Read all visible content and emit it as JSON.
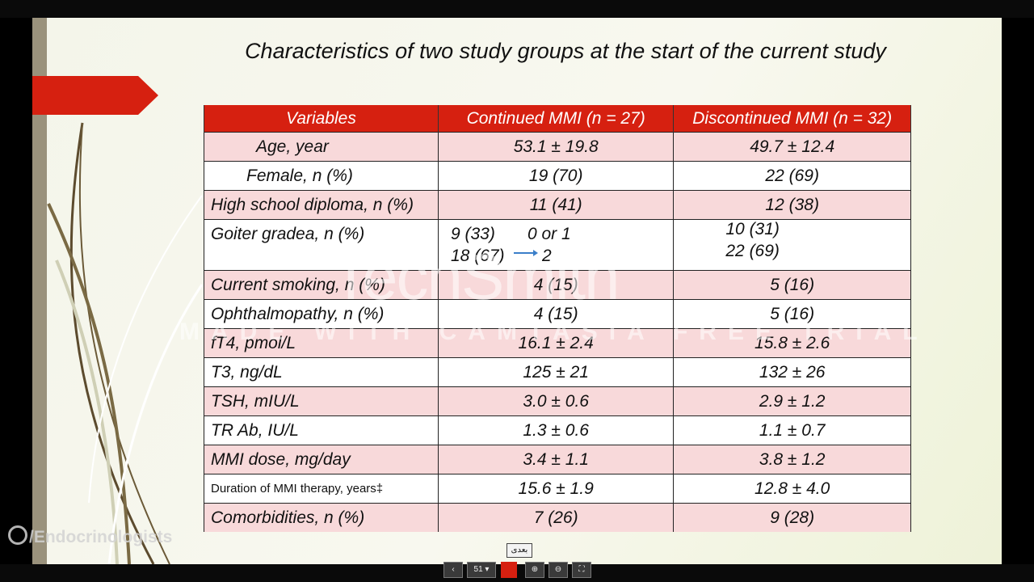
{
  "slide": {
    "title": "Characteristics of two study groups at the start of the current study",
    "accent_color": "#d62010",
    "row_pink": "#f8d9da"
  },
  "table": {
    "headers": [
      "Variables",
      "Continued MMI (n = 27)",
      "Discontinued MMI (n = 32)"
    ],
    "rows": [
      {
        "label": "Age, year",
        "continued": "53.1 ± 19.8",
        "discontinued": "49.7 ± 12.4"
      },
      {
        "label": "Female, n (%)",
        "continued": "19 (70)",
        "discontinued": "22 (69)"
      },
      {
        "label": "High school diploma, n (%)",
        "continued": "11 (41)",
        "discontinued": "12 (38)"
      },
      {
        "label": "Goiter gradea, n (%)",
        "continued_a": "9 (33)",
        "grade_a": "0 or 1",
        "continued_b": "18 (67)",
        "grade_b": "2",
        "discontinued_a": "10 (31)",
        "discontinued_b": "22 (69)"
      },
      {
        "label": "Current smoking, n (%)",
        "continued": "4 (15)",
        "discontinued": "5 (16)"
      },
      {
        "label": "Ophthalmopathy, n (%)",
        "continued": "4 (15)",
        "discontinued": "5 (16)"
      },
      {
        "label": "fT4, pmol/L",
        "continued": "16.1 ± 2.4",
        "discontinued": "15.8 ± 2.6"
      },
      {
        "label": "T3, ng/dL",
        "continued": "125 ± 21",
        "discontinued": "132 ± 26"
      },
      {
        "label": "TSH, mIU/L",
        "continued": "3.0 ± 0.6",
        "discontinued": "2.9 ± 1.2"
      },
      {
        "label": "TR Ab, IU/L",
        "continued": "1.3 ± 0.6",
        "discontinued": "1.1 ± 0.7"
      },
      {
        "label": "MMI dose, mg/day",
        "continued": "3.4 ± 1.1",
        "discontinued": "3.8 ± 1.2"
      },
      {
        "label": "Duration of MMI therapy, years‡",
        "continued": "15.6 ± 1.9",
        "discontinued": "12.8 ± 4.0"
      },
      {
        "label": "Comorbidities, n (%)",
        "continued": "7 (26)",
        "discontinued": "9 (28)"
      }
    ]
  },
  "watermark": {
    "brand": "TechSmith",
    "tagline": "MADE WITH CAMTASIA FREE TRIAL"
  },
  "overlay": {
    "channel": "/Endocrinologists"
  },
  "viewer": {
    "page_select": "51",
    "tooltip": "بعدی",
    "prev_icon": "chevron-left-icon",
    "zoom_in_icon": "zoom-in-icon",
    "zoom_out_icon": "zoom-out-icon",
    "fit_icon": "fit-screen-icon"
  }
}
